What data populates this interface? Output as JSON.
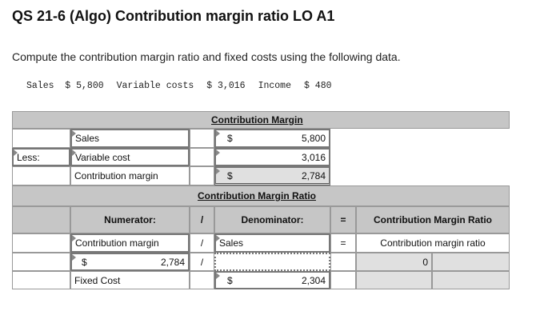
{
  "title": "QS 21-6 (Algo) Contribution margin ratio LO A1",
  "instruction": "Compute the contribution margin ratio and fixed costs using the following data.",
  "given": {
    "sales": "Sales  $ 5,800",
    "variable": "Variable costs",
    "variable_val": "$ 3,016",
    "income": "Income",
    "income_val": "$ 480"
  },
  "cm": {
    "header": "Contribution Margin",
    "less": "Less:",
    "rows": [
      {
        "label": "Sales",
        "cur": "$",
        "value": "5,800"
      },
      {
        "label": "Variable cost",
        "cur": "",
        "value": "3,016"
      },
      {
        "label": "Contribution margin",
        "cur": "$",
        "value": "2,784"
      }
    ]
  },
  "ratio": {
    "header": "Contribution Margin Ratio",
    "numerator": "Numerator:",
    "slash": "/",
    "denominator": "Denominator:",
    "equals": "=",
    "result": "Contribution Margin Ratio",
    "row1": {
      "num": "Contribution margin",
      "den": "Sales",
      "res": "Contribution margin ratio"
    },
    "row2": {
      "cur": "$",
      "num": "2,784",
      "den": "",
      "res": "0"
    },
    "row3": {
      "label": "Fixed Cost",
      "cur": "$",
      "value": "2,304"
    }
  }
}
